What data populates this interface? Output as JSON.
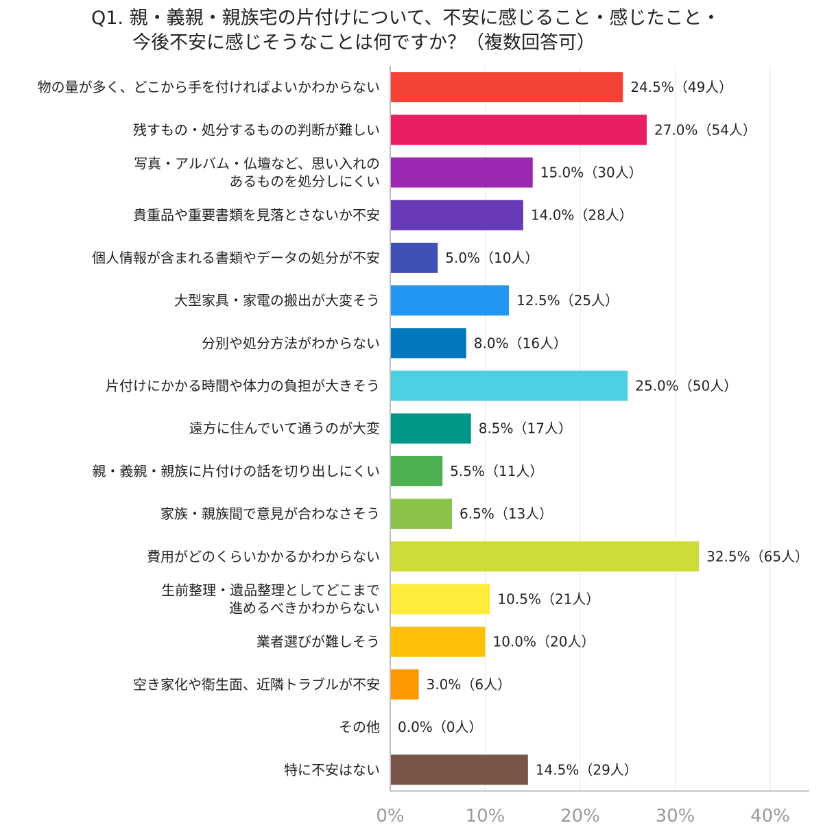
{
  "chart_data": {
    "type": "bar",
    "orientation": "horizontal",
    "title": "Q1. 親・義親・親族宅の片付けについて、不安に感じること・感じたこと・今後不安に感じそうなことは何ですか？（複数回答可）",
    "title_lines": [
      "Q1. 親・義親・親族宅の片付けについて、不安に感じること・感じたこと・",
      "今後不安に感じそうなことは何ですか？（複数回答可）"
    ],
    "categories": [
      [
        "物の量が多く、どこから手を付ければよいかわからない"
      ],
      [
        "残すもの・処分するものの判断が難しい"
      ],
      [
        "写真・アルバム・仏壇など、思い入れの",
        "あるものを処分しにくい"
      ],
      [
        "貴重品や重要書類を見落とさないか不安"
      ],
      [
        "個人情報が含まれる書類やデータの処分が不安"
      ],
      [
        "大型家具・家電の搬出が大変そう"
      ],
      [
        "分別や処分方法がわからない"
      ],
      [
        "片付けにかかる時間や体力の負担が大きそう"
      ],
      [
        "遠方に住んでいて通うのが大変"
      ],
      [
        "親・義親・親族に片付けの話を切り出しにくい"
      ],
      [
        "家族・親族間で意見が合わなさそう"
      ],
      [
        "費用がどのくらいかかるかわからない"
      ],
      [
        "生前整理・遺品整理としてどこまで",
        "進めるべきかわからない"
      ],
      [
        "業者選びが難しそう"
      ],
      [
        "空き家化や衛生面、近隣トラブルが不安"
      ],
      [
        "その他"
      ],
      [
        "特に不安はない"
      ]
    ],
    "values": [
      24.5,
      27.0,
      15.0,
      14.0,
      5.0,
      12.5,
      8.0,
      25.0,
      8.5,
      5.5,
      6.5,
      32.5,
      10.5,
      10.0,
      3.0,
      0.0,
      14.5
    ],
    "value_labels": [
      "24.5%（49人）",
      "27.0%（54人）",
      "15.0%（30人）",
      "14.0%（28人）",
      "5.0%（10人）",
      "12.5%（25人）",
      "8.0%（16人）",
      "25.0%（50人）",
      "8.5%（17人）",
      "5.5%（11人）",
      "6.5%（13人）",
      "32.5%（65人）",
      "10.5%（21人）",
      "10.0%（20人）",
      "3.0%（6人）",
      "0.0%（0人）",
      "14.5%（29人）"
    ],
    "colors": [
      "#f44336",
      "#e91e63",
      "#9c27b0",
      "#673ab7",
      "#3f51b5",
      "#2196f3",
      "#0277bd",
      "#4dd0e1",
      "#009688",
      "#4caf50",
      "#8bc34a",
      "#cddc39",
      "#ffeb3b",
      "#ffc107",
      "#ff9800",
      "#ff7043",
      "#795548"
    ],
    "xlim": [
      0,
      40
    ],
    "xticks": [
      "0%",
      "10%",
      "20%",
      "30%",
      "40%"
    ],
    "xtick_values": [
      0,
      10,
      20,
      30,
      40
    ],
    "grid": true,
    "legend": "none"
  }
}
